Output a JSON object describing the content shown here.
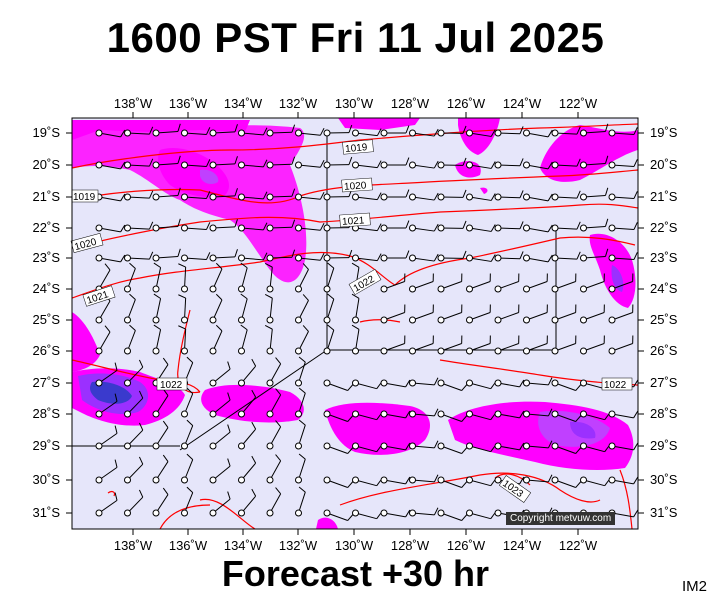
{
  "title": "1600 PST Fri 11 Jul 2025",
  "forecast_label": "Forecast +30 hr",
  "image_code": "IM2",
  "copyright": "Copyright metvuw.com",
  "colors": {
    "background": "#e6e6fa",
    "rain_light": "#ff00ff",
    "rain_medium": "#9b30ff",
    "rain_heavy": "#3a3acd",
    "isobar": "#ff0000",
    "wind_barb": "#000000"
  },
  "map": {
    "lon_ticks": [
      "138˚W",
      "136˚W",
      "134˚W",
      "132˚W",
      "130˚W",
      "128˚W",
      "126˚W",
      "124˚W",
      "122˚W"
    ],
    "lat_ticks": [
      "19˚S",
      "20˚S",
      "21˚S",
      "22˚S",
      "23˚S",
      "24˚S",
      "25˚S",
      "26˚S",
      "27˚S",
      "28˚S",
      "29˚S",
      "30˚S",
      "31˚S"
    ],
    "isobar_labels": [
      "1019",
      "1019",
      "1020",
      "1020",
      "1021",
      "1021",
      "1022",
      "1022",
      "1022",
      "1023"
    ]
  }
}
